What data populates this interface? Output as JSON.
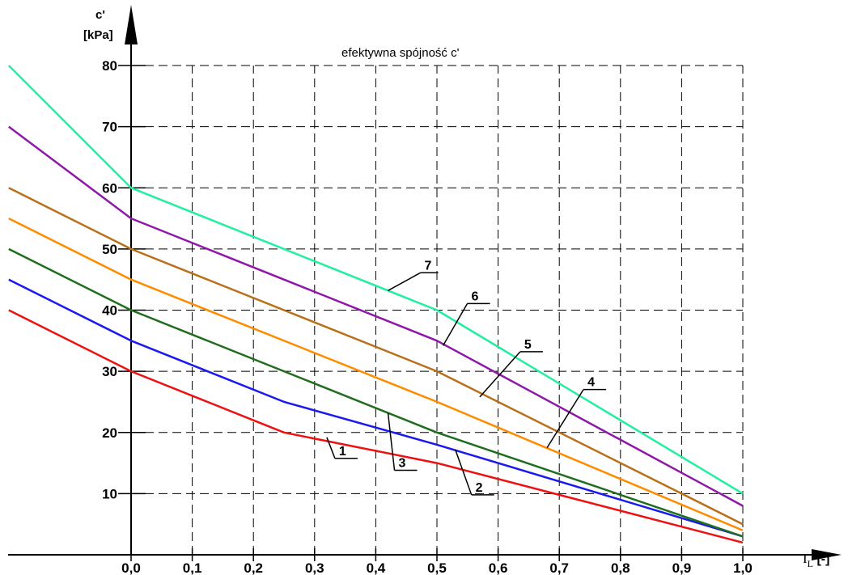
{
  "chart_data": {
    "type": "line",
    "title": "efektywna spójność c'",
    "ylabel_line1": "c'",
    "ylabel_line2": "[kPa]",
    "xlabel_main": "I",
    "xlabel_sub": "L",
    "xlabel_unit": " [-]",
    "xlim": [
      -0.2,
      1.0
    ],
    "ylim": [
      0,
      85
    ],
    "xticks": [
      {
        "value": 0.0,
        "label": "0,0"
      },
      {
        "value": 0.1,
        "label": "0,1"
      },
      {
        "value": 0.2,
        "label": "0,2"
      },
      {
        "value": 0.3,
        "label": "0,3"
      },
      {
        "value": 0.4,
        "label": "0,4"
      },
      {
        "value": 0.5,
        "label": "0,5"
      },
      {
        "value": 0.6,
        "label": "0,6"
      },
      {
        "value": 0.7,
        "label": "0,7"
      },
      {
        "value": 0.8,
        "label": "0,8"
      },
      {
        "value": 0.9,
        "label": "0,9"
      },
      {
        "value": 1.0,
        "label": "1,0"
      }
    ],
    "yticks": [
      {
        "value": 10,
        "label": "10"
      },
      {
        "value": 20,
        "label": "20"
      },
      {
        "value": 30,
        "label": "30"
      },
      {
        "value": 40,
        "label": "40"
      },
      {
        "value": 50,
        "label": "50"
      },
      {
        "value": 60,
        "label": "60"
      },
      {
        "value": 70,
        "label": "70"
      },
      {
        "value": 80,
        "label": "80"
      }
    ],
    "grid": true,
    "grid_style": "dashed",
    "series": [
      {
        "name": "1",
        "color": "#ee1111",
        "points": [
          [
            -0.2,
            40
          ],
          [
            0.0,
            30
          ],
          [
            0.25,
            20
          ],
          [
            0.5,
            15
          ],
          [
            1.0,
            2
          ]
        ],
        "label_at": [
          0.32,
          19.2
        ]
      },
      {
        "name": "2",
        "color": "#1a1aee",
        "points": [
          [
            -0.2,
            45
          ],
          [
            0.0,
            35
          ],
          [
            0.25,
            25
          ],
          [
            0.5,
            18
          ],
          [
            1.0,
            3
          ]
        ],
        "label_at": [
          0.53,
          17.2
        ]
      },
      {
        "name": "3",
        "color": "#1e6e1e",
        "points": [
          [
            -0.2,
            50
          ],
          [
            0.0,
            40
          ],
          [
            0.5,
            20
          ],
          [
            1.0,
            3
          ]
        ],
        "label_at": [
          0.42,
          23.2
        ]
      },
      {
        "name": "4",
        "color": "#ff8c00",
        "points": [
          [
            -0.2,
            55
          ],
          [
            0.0,
            45
          ],
          [
            0.5,
            25
          ],
          [
            1.0,
            4
          ]
        ],
        "label_at": [
          0.68,
          17.5
        ]
      },
      {
        "name": "5",
        "color": "#b8701a",
        "points": [
          [
            -0.2,
            60
          ],
          [
            0.0,
            50
          ],
          [
            0.5,
            30
          ],
          [
            1.0,
            5
          ]
        ],
        "label_at": [
          0.57,
          25.8
        ]
      },
      {
        "name": "6",
        "color": "#8e18a8",
        "points": [
          [
            -0.2,
            70
          ],
          [
            0.0,
            55
          ],
          [
            0.5,
            35
          ],
          [
            1.0,
            8
          ]
        ],
        "label_at": [
          0.51,
          34.2
        ]
      },
      {
        "name": "7",
        "color": "#22f0a0",
        "points": [
          [
            -0.2,
            80
          ],
          [
            0.0,
            60
          ],
          [
            0.5,
            40
          ],
          [
            1.0,
            10
          ]
        ],
        "label_at": [
          0.42,
          43.2
        ]
      }
    ]
  }
}
